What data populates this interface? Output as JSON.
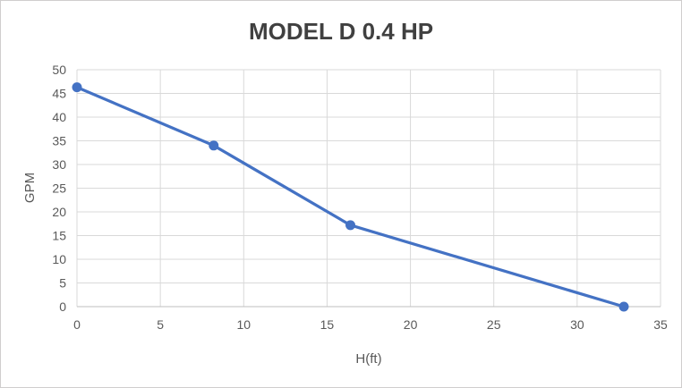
{
  "chart_data": {
    "type": "line",
    "title": "MODEL D 0.4 HP",
    "xlabel": "H(ft)",
    "ylabel": "GPM",
    "series": [
      {
        "name": "GPM vs H",
        "x": [
          0,
          8.2,
          16.4,
          32.8
        ],
        "y": [
          46.3,
          34,
          17.2,
          0
        ]
      }
    ],
    "xlim": [
      0,
      35
    ],
    "ylim": [
      0,
      50
    ],
    "xticks": [
      0,
      5,
      10,
      15,
      20,
      25,
      30,
      35
    ],
    "yticks": [
      0,
      5,
      10,
      15,
      20,
      25,
      30,
      35,
      40,
      45,
      50
    ],
    "grid": true,
    "legend": false,
    "marker": "circle",
    "colors": {
      "line": "#4472C4",
      "marker": "#4472C4",
      "grid": "#D9D9D9",
      "axis": "#BFBFBF",
      "tick_text": "#595959",
      "title_text": "#404040",
      "frame_border": "#D0CECE",
      "background": "#FFFFFF"
    }
  }
}
